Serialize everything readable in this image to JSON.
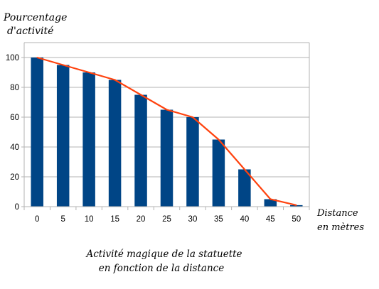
{
  "chart_data": {
    "type": "bar",
    "categories": [
      "0",
      "5",
      "10",
      "15",
      "20",
      "25",
      "30",
      "35",
      "40",
      "45",
      "50"
    ],
    "series": [
      {
        "type": "bar",
        "values": [
          100,
          95,
          90,
          85,
          75,
          65,
          60,
          45,
          25,
          5,
          1
        ]
      },
      {
        "type": "line",
        "values": [
          100,
          95,
          90,
          85,
          75,
          65,
          60,
          45,
          25,
          5,
          1
        ]
      }
    ],
    "ylabel_lines": [
      "Pourcentage",
      "d'activité"
    ],
    "xlabel_lines": [
      "Distance",
      "en mètres"
    ],
    "title_lines": [
      "Activité magique de la statuette",
      "en fonction de la distance"
    ],
    "y_ticks": [
      "0",
      "20",
      "40",
      "60",
      "80",
      "100"
    ],
    "ylim": [
      0,
      110
    ],
    "grid": true,
    "colors": {
      "bar": "#004586",
      "line": "#ff420e",
      "grid": "#b3b3b3"
    }
  }
}
